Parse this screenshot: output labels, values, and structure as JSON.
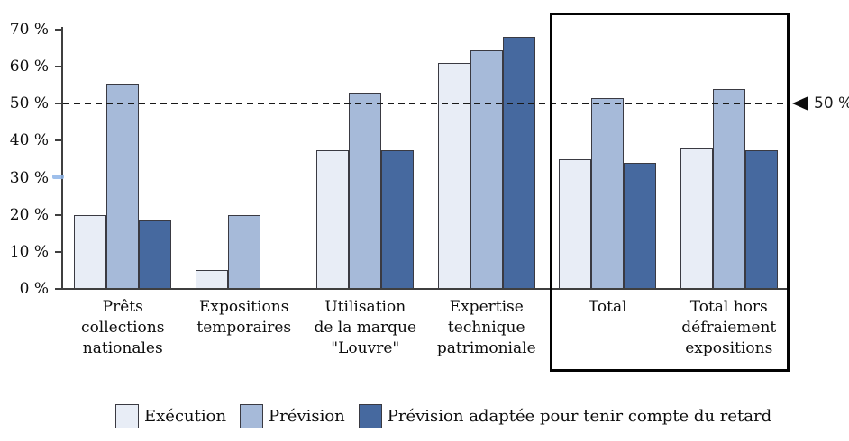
{
  "chart_data": {
    "type": "bar",
    "title": "",
    "xlabel": "",
    "ylabel": "",
    "categories": [
      "Prêts\ncollections\nnationales",
      "Expositions\ntemporaires",
      "Utilisation\nde la marque\n\"Louvre\"",
      "Expertise\ntechnique\npatrimoniale",
      "Total",
      "Total hors\ndéfraiement\nexpositions"
    ],
    "series": [
      {
        "name": "Exécution",
        "color": "#e8edf6",
        "values": [
          20,
          5,
          37.5,
          61,
          35,
          38
        ]
      },
      {
        "name": "Prévision",
        "color": "#a6bad9",
        "values": [
          55.5,
          20,
          53,
          64.5,
          51.5,
          54
        ]
      },
      {
        "name": "Prévision adaptée pour tenir compte du retard",
        "color": "#46699f",
        "values": [
          18.5,
          0,
          37.5,
          68,
          34,
          37.5
        ]
      }
    ],
    "ylim": [
      0,
      70
    ],
    "yticks": [
      "0 %",
      "10 %",
      "20 %",
      "30 %",
      "40 %",
      "50 %",
      "60 %",
      "70 %"
    ],
    "grid": false,
    "legend_position": "bottom",
    "reference_line": {
      "value": 50,
      "label": "50 %",
      "style": "dashed"
    },
    "highlight_box": {
      "from_category": "Total",
      "to_category": "Total hors défraiement expositions"
    }
  }
}
